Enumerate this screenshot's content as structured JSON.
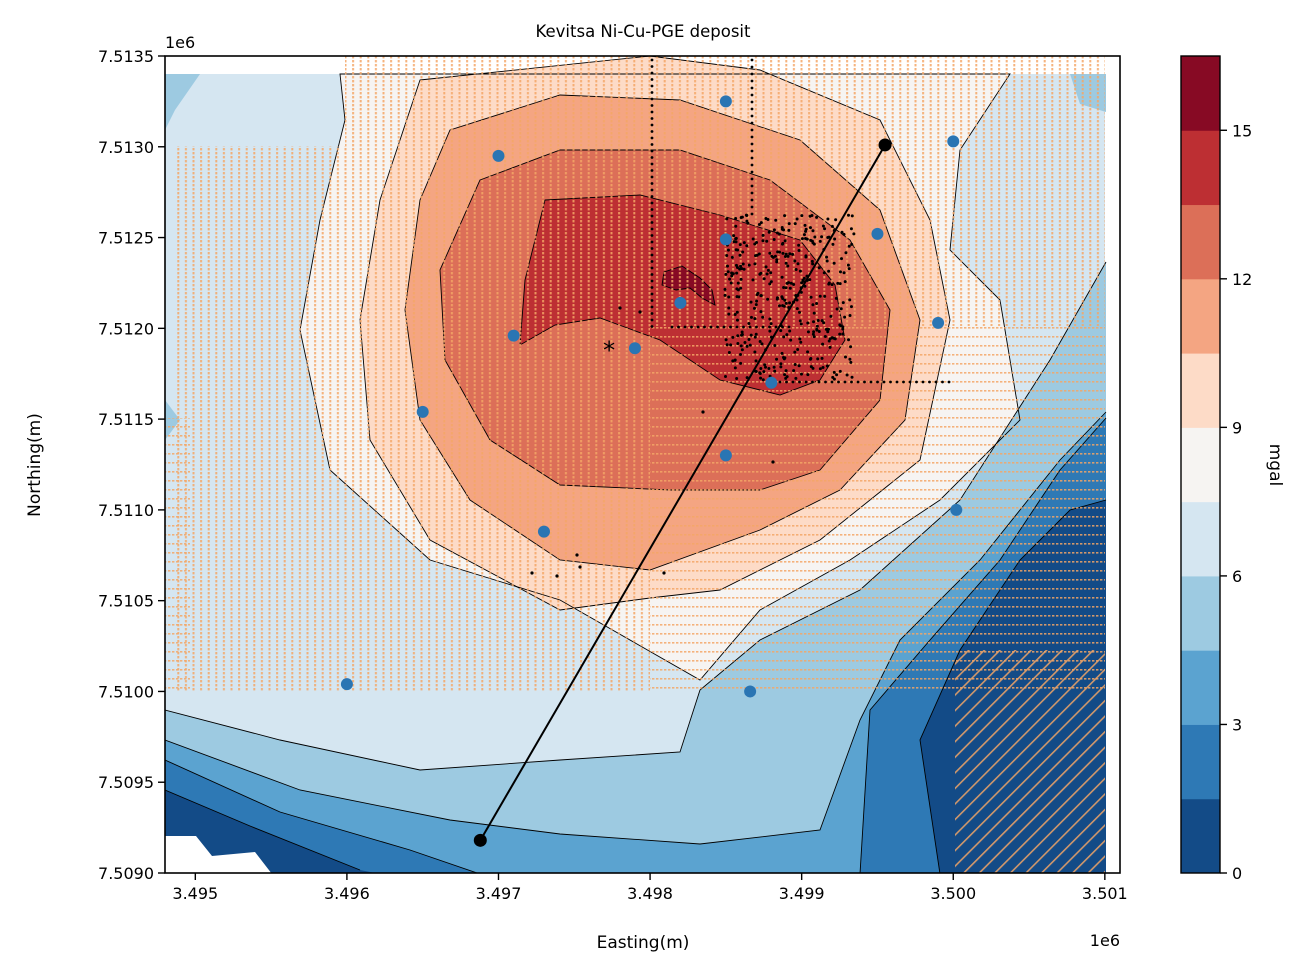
{
  "chart_data": {
    "type": "contour",
    "title": "Kevitsa Ni-Cu-PGE deposit",
    "xlabel": "Easting(m)",
    "ylabel": "Northing(m)",
    "x_offset_label": "1e6",
    "y_offset_label": "1e6",
    "xlim": [
      3.4948,
      3.5011
    ],
    "ylim": [
      7.509,
      7.5135
    ],
    "xticks": [
      3.495,
      3.496,
      3.497,
      3.498,
      3.499,
      3.5,
      3.501
    ],
    "xtick_labels": [
      "3.495",
      "3.496",
      "3.497",
      "3.498",
      "3.499",
      "3.500",
      "3.501"
    ],
    "yticks": [
      7.509,
      7.5095,
      7.51,
      7.5105,
      7.511,
      7.5115,
      7.512,
      7.5125,
      7.513,
      7.5135
    ],
    "ytick_labels": [
      "7.5090",
      "7.5095",
      "7.5100",
      "7.5105",
      "7.5110",
      "7.5115",
      "7.5120",
      "7.5125",
      "7.5130",
      "7.5135"
    ],
    "colorbar": {
      "label": "mgal",
      "min": 0,
      "max": 16.5,
      "ticks": [
        0,
        3,
        6,
        9,
        12,
        15
      ],
      "tick_labels": [
        "0",
        "3",
        "6",
        "9",
        "12",
        "15"
      ],
      "level_colors": [
        "#134b87",
        "#2e79b5",
        "#5ba3d0",
        "#9dcae1",
        "#d5e6f1",
        "#f6f4f2",
        "#fddbc7",
        "#f4a582",
        "#dc6f58",
        "#bd2f33",
        "#870a24"
      ]
    },
    "anomaly_center": [
      3.4982,
      7.5121
    ],
    "blue_stations": [
      [
        3.497,
        7.51295
      ],
      [
        3.4985,
        7.51325
      ],
      [
        3.5,
        7.51303
      ],
      [
        3.4985,
        7.51249
      ],
      [
        3.4995,
        7.51252
      ],
      [
        3.4982,
        7.51214
      ],
      [
        3.4971,
        7.51196
      ],
      [
        3.4979,
        7.51189
      ],
      [
        3.4999,
        7.51203
      ],
      [
        3.4988,
        7.5117
      ],
      [
        3.4965,
        7.51154
      ],
      [
        3.4985,
        7.5113
      ],
      [
        3.50002,
        7.511
      ],
      [
        3.4973,
        7.51088
      ],
      [
        3.496,
        7.51004
      ],
      [
        3.49866,
        7.51
      ]
    ],
    "green_star": [
      3.49773,
      7.51191
    ],
    "profile_line": {
      "start": [
        3.49688,
        7.50918
      ],
      "end": [
        3.49955,
        7.51301
      ]
    },
    "line_color": "#000000",
    "star_color": "#1a8a1a",
    "station_color": "#2a75b3",
    "survey_color": "#f4a666"
  }
}
